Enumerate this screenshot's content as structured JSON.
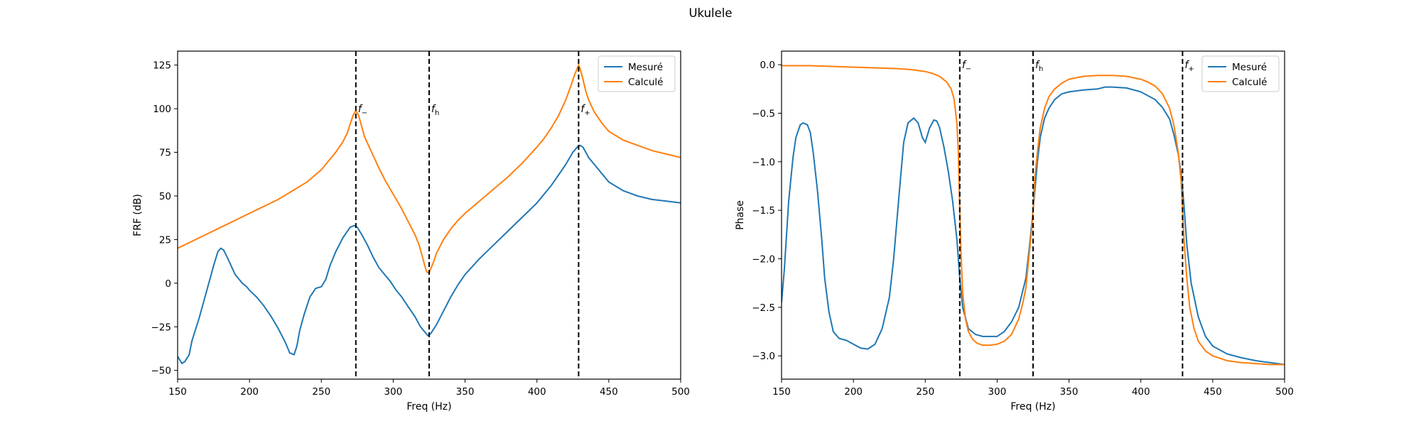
{
  "figure_title": "Ukulele",
  "chart_data": [
    {
      "type": "line",
      "xlabel": "Freq (Hz)",
      "ylabel": "FRF (dB)",
      "xlim": [
        150,
        500
      ],
      "ylim": [
        -55,
        133
      ],
      "xticks": [
        150,
        200,
        250,
        300,
        350,
        400,
        450,
        500
      ],
      "yticks": [
        -50,
        -25,
        0,
        25,
        50,
        75,
        100,
        125
      ],
      "legend": "top-right",
      "grid": false,
      "vlines": [
        {
          "x": 274,
          "label": "f",
          "sub": "−",
          "label_y": 100
        },
        {
          "x": 325,
          "label": "f",
          "sub": "h",
          "label_y": 100
        },
        {
          "x": 429,
          "label": "f",
          "sub": "+",
          "label_y": 100
        }
      ],
      "series": [
        {
          "name": "Mesuré",
          "color": "#1f77b4",
          "x": [
            150,
            153,
            155,
            158,
            160,
            165,
            170,
            175,
            178,
            180,
            182,
            185,
            190,
            195,
            198,
            200,
            205,
            210,
            215,
            220,
            225,
            228,
            231,
            233,
            235,
            238,
            242,
            246,
            250,
            253,
            256,
            260,
            265,
            270,
            273,
            275,
            278,
            282,
            286,
            290,
            294,
            298,
            302,
            306,
            310,
            315,
            319,
            322,
            324,
            326,
            330,
            335,
            340,
            345,
            350,
            360,
            370,
            380,
            390,
            400,
            410,
            415,
            420,
            425,
            428,
            430,
            432,
            434,
            436,
            440,
            445,
            450,
            460,
            470,
            480,
            490,
            500
          ],
          "values": [
            -42,
            -46,
            -45,
            -41,
            -33,
            -20,
            -5,
            10,
            18,
            20,
            19,
            14,
            5,
            0,
            -2,
            -4,
            -8,
            -13,
            -19,
            -26,
            -34,
            -40,
            -41,
            -36,
            -27,
            -18,
            -8,
            -3,
            -2,
            2,
            10,
            18,
            26,
            32,
            33,
            32,
            28,
            22,
            15,
            9,
            5,
            1,
            -4,
            -8,
            -13,
            -19,
            -25,
            -28,
            -30,
            -29,
            -24,
            -16,
            -8,
            -1,
            5,
            14,
            22,
            30,
            38,
            46,
            56,
            62,
            68,
            75,
            78,
            79,
            78,
            75,
            72,
            68,
            63,
            58,
            53,
            50,
            48,
            47,
            46
          ]
        },
        {
          "name": "Calculé",
          "color": "#ff7f0e",
          "x": [
            150,
            160,
            170,
            180,
            190,
            200,
            210,
            220,
            230,
            240,
            250,
            255,
            260,
            265,
            268,
            270,
            272,
            274,
            276,
            278,
            280,
            285,
            290,
            295,
            300,
            305,
            310,
            315,
            318,
            320,
            322,
            323,
            324,
            325,
            326,
            328,
            330,
            335,
            340,
            345,
            350,
            360,
            370,
            380,
            390,
            400,
            405,
            410,
            415,
            420,
            424,
            426,
            428,
            429,
            430,
            432,
            434,
            436,
            440,
            445,
            450,
            460,
            470,
            480,
            490,
            500
          ],
          "values": [
            20,
            24,
            28,
            32,
            36,
            40,
            44,
            48,
            53,
            58,
            65,
            70,
            75,
            81,
            86,
            91,
            96,
            99,
            96,
            90,
            84,
            75,
            66,
            58,
            51,
            44,
            36,
            28,
            22,
            16,
            10,
            7,
            6,
            6,
            8,
            12,
            17,
            25,
            31,
            36,
            40,
            47,
            54,
            61,
            69,
            78,
            83,
            89,
            96,
            105,
            114,
            119,
            123,
            125,
            123,
            117,
            110,
            105,
            98,
            92,
            87,
            82,
            79,
            76,
            74,
            72
          ]
        }
      ]
    },
    {
      "type": "line",
      "xlabel": "Freq (Hz)",
      "ylabel": "Phase",
      "xlim": [
        150,
        500
      ],
      "ylim": [
        -3.24,
        0.14
      ],
      "xticks": [
        150,
        200,
        250,
        300,
        350,
        400,
        450,
        500
      ],
      "yticks": [
        0.0,
        -0.5,
        -1.0,
        -1.5,
        -2.0,
        -2.5,
        -3.0
      ],
      "legend": "top-right",
      "grid": false,
      "vlines": [
        {
          "x": 274,
          "label": "f",
          "sub": "−",
          "label_y": 0.0
        },
        {
          "x": 325,
          "label": "f",
          "sub": "h",
          "label_y": 0.0
        },
        {
          "x": 429,
          "label": "f",
          "sub": "+",
          "label_y": 0.0
        }
      ],
      "series": [
        {
          "name": "Mesuré",
          "color": "#1f77b4",
          "x": [
            150,
            152,
            155,
            158,
            160,
            163,
            165,
            168,
            170,
            172,
            175,
            178,
            180,
            183,
            186,
            190,
            195,
            200,
            205,
            210,
            215,
            220,
            225,
            228,
            232,
            235,
            238,
            242,
            245,
            248,
            250,
            253,
            256,
            258,
            260,
            263,
            266,
            269,
            272,
            274,
            276,
            280,
            285,
            290,
            295,
            300,
            305,
            310,
            315,
            320,
            323,
            325,
            328,
            330,
            333,
            336,
            340,
            345,
            350,
            360,
            370,
            375,
            380,
            390,
            400,
            405,
            410,
            415,
            420,
            423,
            426,
            428,
            430,
            432,
            435,
            440,
            445,
            450,
            460,
            470,
            480,
            490,
            500
          ],
          "values": [
            -2.45,
            -2.1,
            -1.4,
            -0.95,
            -0.75,
            -0.62,
            -0.6,
            -0.62,
            -0.7,
            -0.9,
            -1.3,
            -1.8,
            -2.2,
            -2.55,
            -2.75,
            -2.82,
            -2.84,
            -2.88,
            -2.92,
            -2.93,
            -2.88,
            -2.72,
            -2.4,
            -2.0,
            -1.3,
            -0.8,
            -0.6,
            -0.55,
            -0.6,
            -0.75,
            -0.8,
            -0.65,
            -0.57,
            -0.58,
            -0.65,
            -0.85,
            -1.1,
            -1.4,
            -1.8,
            -2.2,
            -2.5,
            -2.72,
            -2.78,
            -2.8,
            -2.8,
            -2.8,
            -2.75,
            -2.65,
            -2.5,
            -2.2,
            -1.8,
            -1.5,
            -1.0,
            -0.75,
            -0.55,
            -0.45,
            -0.36,
            -0.3,
            -0.28,
            -0.26,
            -0.25,
            -0.23,
            -0.23,
            -0.24,
            -0.28,
            -0.32,
            -0.36,
            -0.44,
            -0.56,
            -0.72,
            -0.92,
            -1.12,
            -1.45,
            -1.85,
            -2.25,
            -2.6,
            -2.8,
            -2.9,
            -2.98,
            -3.02,
            -3.05,
            -3.07,
            -3.09
          ]
        },
        {
          "name": "Calculé",
          "color": "#ff7f0e",
          "x": [
            150,
            170,
            190,
            210,
            230,
            240,
            250,
            255,
            260,
            265,
            268,
            270,
            272,
            273,
            274,
            275,
            276,
            278,
            280,
            283,
            286,
            290,
            295,
            300,
            305,
            310,
            315,
            318,
            320,
            322,
            324,
            325,
            326,
            328,
            330,
            333,
            336,
            340,
            345,
            350,
            360,
            370,
            380,
            390,
            400,
            405,
            410,
            415,
            420,
            423,
            426,
            428,
            429,
            430,
            432,
            434,
            437,
            440,
            445,
            450,
            460,
            470,
            480,
            490,
            500
          ],
          "values": [
            -0.01,
            -0.01,
            -0.02,
            -0.03,
            -0.04,
            -0.05,
            -0.07,
            -0.09,
            -0.12,
            -0.18,
            -0.25,
            -0.35,
            -0.6,
            -0.9,
            -1.5,
            -2.0,
            -2.35,
            -2.62,
            -2.75,
            -2.83,
            -2.87,
            -2.89,
            -2.89,
            -2.88,
            -2.85,
            -2.78,
            -2.62,
            -2.45,
            -2.3,
            -2.0,
            -1.7,
            -1.5,
            -1.2,
            -0.9,
            -0.65,
            -0.45,
            -0.33,
            -0.25,
            -0.19,
            -0.15,
            -0.12,
            -0.11,
            -0.11,
            -0.12,
            -0.15,
            -0.18,
            -0.22,
            -0.3,
            -0.45,
            -0.62,
            -0.9,
            -1.2,
            -1.5,
            -1.8,
            -2.2,
            -2.5,
            -2.72,
            -2.85,
            -2.95,
            -3.0,
            -3.05,
            -3.07,
            -3.08,
            -3.09,
            -3.09
          ]
        }
      ]
    }
  ]
}
